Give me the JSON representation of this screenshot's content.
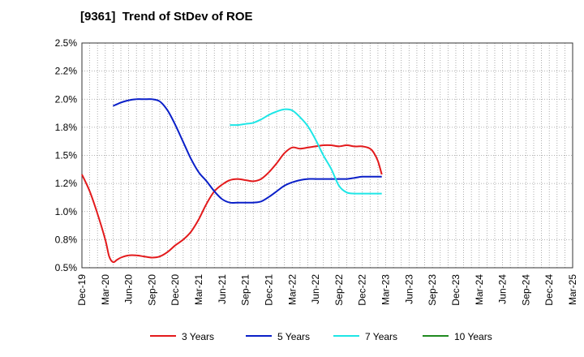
{
  "chart_data": {
    "type": "line",
    "title": "[9361]  Trend of StDev of ROE",
    "xlabel": "",
    "ylabel": "",
    "ylim": [
      0.5,
      2.5
    ],
    "y_ticks": [
      "2.5%",
      "2.2%",
      "2.0%",
      "1.8%",
      "1.5%",
      "1.2%",
      "1.0%",
      "0.8%",
      "0.5%"
    ],
    "y_tick_values": [
      2.5,
      2.25,
      2.0,
      1.75,
      1.5,
      1.25,
      1.0,
      0.75,
      0.5
    ],
    "x_ticks": [
      "Dec-19",
      "Mar-20",
      "Jun-20",
      "Sep-20",
      "Dec-20",
      "Mar-21",
      "Jun-21",
      "Sep-21",
      "Dec-21",
      "Mar-22",
      "Jun-22",
      "Sep-22",
      "Dec-22",
      "Mar-23",
      "Jun-23",
      "Sep-23",
      "Dec-23",
      "Mar-24",
      "Jun-24",
      "Sep-24",
      "Dec-24",
      "Mar-25"
    ],
    "grid": true,
    "legend_position": "bottom",
    "series": [
      {
        "name": "3 Years",
        "color": "#e31a1c",
        "points": [
          [
            0,
            1.33
          ],
          [
            1,
            1.18
          ],
          [
            2,
            0.98
          ],
          [
            3,
            0.75
          ],
          [
            3.5,
            0.6
          ],
          [
            4,
            0.55
          ],
          [
            4.5,
            0.57
          ],
          [
            5,
            0.59
          ],
          [
            6,
            0.61
          ],
          [
            7,
            0.61
          ],
          [
            8,
            0.6
          ],
          [
            9,
            0.59
          ],
          [
            10,
            0.6
          ],
          [
            11,
            0.64
          ],
          [
            12,
            0.7
          ],
          [
            13,
            0.75
          ],
          [
            14,
            0.82
          ],
          [
            15,
            0.93
          ],
          [
            16,
            1.07
          ],
          [
            17,
            1.18
          ],
          [
            18,
            1.24
          ],
          [
            19,
            1.28
          ],
          [
            20,
            1.29
          ],
          [
            21,
            1.28
          ],
          [
            22,
            1.27
          ],
          [
            23,
            1.29
          ],
          [
            24,
            1.35
          ],
          [
            25,
            1.43
          ],
          [
            26,
            1.52
          ],
          [
            27,
            1.57
          ],
          [
            28,
            1.56
          ],
          [
            29,
            1.57
          ],
          [
            30,
            1.58
          ],
          [
            31,
            1.59
          ],
          [
            32,
            1.59
          ],
          [
            33,
            1.58
          ],
          [
            34,
            1.59
          ],
          [
            35,
            1.58
          ],
          [
            36,
            1.58
          ],
          [
            37,
            1.56
          ],
          [
            37.5,
            1.52
          ],
          [
            38,
            1.45
          ],
          [
            38.5,
            1.33
          ]
        ]
      },
      {
        "name": "5 Years",
        "color": "#0a1fc8",
        "points": [
          [
            4,
            1.94
          ],
          [
            5,
            1.97
          ],
          [
            6,
            1.99
          ],
          [
            7,
            2.0
          ],
          [
            8,
            2.0
          ],
          [
            9,
            2.0
          ],
          [
            10,
            1.98
          ],
          [
            11,
            1.9
          ],
          [
            12,
            1.77
          ],
          [
            13,
            1.62
          ],
          [
            14,
            1.47
          ],
          [
            15,
            1.35
          ],
          [
            16,
            1.27
          ],
          [
            17,
            1.18
          ],
          [
            18,
            1.11
          ],
          [
            19,
            1.08
          ],
          [
            20,
            1.08
          ],
          [
            21,
            1.08
          ],
          [
            22,
            1.08
          ],
          [
            23,
            1.09
          ],
          [
            24,
            1.13
          ],
          [
            25,
            1.18
          ],
          [
            26,
            1.23
          ],
          [
            27,
            1.26
          ],
          [
            28,
            1.28
          ],
          [
            29,
            1.29
          ],
          [
            30,
            1.29
          ],
          [
            31,
            1.29
          ],
          [
            32,
            1.29
          ],
          [
            33,
            1.29
          ],
          [
            34,
            1.29
          ],
          [
            35,
            1.3
          ],
          [
            36,
            1.31
          ],
          [
            37,
            1.31
          ],
          [
            38,
            1.31
          ],
          [
            38.5,
            1.31
          ]
        ]
      },
      {
        "name": "7 Years",
        "color": "#1ee6e6",
        "points": [
          [
            19,
            1.77
          ],
          [
            20,
            1.77
          ],
          [
            21,
            1.78
          ],
          [
            22,
            1.79
          ],
          [
            23,
            1.82
          ],
          [
            24,
            1.86
          ],
          [
            25,
            1.89
          ],
          [
            26,
            1.91
          ],
          [
            27,
            1.9
          ],
          [
            28,
            1.84
          ],
          [
            29,
            1.76
          ],
          [
            30,
            1.64
          ],
          [
            31,
            1.5
          ],
          [
            32,
            1.38
          ],
          [
            33,
            1.23
          ],
          [
            34,
            1.17
          ],
          [
            35,
            1.16
          ],
          [
            36,
            1.16
          ],
          [
            37,
            1.16
          ],
          [
            38,
            1.16
          ],
          [
            38.5,
            1.16
          ]
        ]
      },
      {
        "name": "10 Years",
        "color": "#1f8a1f",
        "points": []
      }
    ]
  }
}
